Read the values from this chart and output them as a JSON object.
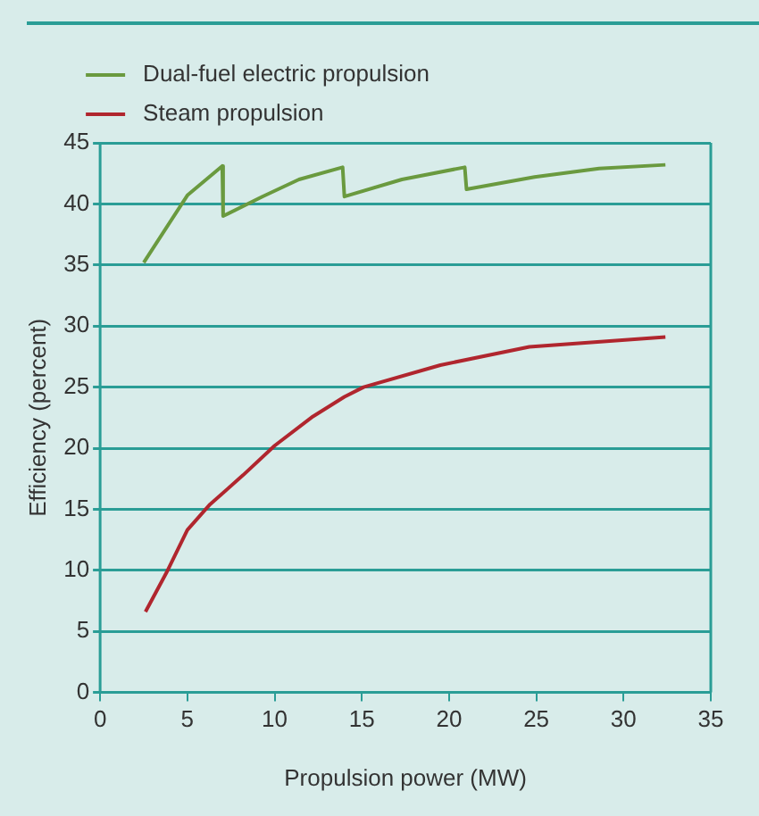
{
  "chart_data": {
    "type": "line",
    "xlabel": "Propulsion power (MW)",
    "ylabel": "Efficiency (percent)",
    "xlim": [
      0,
      35
    ],
    "xticks": [
      0,
      5,
      10,
      15,
      20,
      25,
      30,
      35
    ],
    "ylim": [
      0,
      45
    ],
    "yticks": [
      0,
      5,
      10,
      15,
      20,
      25,
      30,
      35,
      40,
      45
    ],
    "grid": "y",
    "legend": "top left",
    "marker": "none",
    "line_style": "solid",
    "series": [
      {
        "name": "Dual-fuel electric propulsion",
        "color": "#6a9a3f",
        "x": [
          2.5,
          5.0,
          7.0,
          7.05,
          9.3,
          11.4,
          13.9,
          14.0,
          17.3,
          20.9,
          21.0,
          24.9,
          28.6,
          32.4
        ],
        "values": [
          35.2,
          40.7,
          43.1,
          39.0,
          40.6,
          42.0,
          43.0,
          40.6,
          42.0,
          43.0,
          41.2,
          42.2,
          42.9,
          43.2
        ]
      },
      {
        "name": "Steam propulsion",
        "color": "#b0262e",
        "x": [
          2.6,
          3.8,
          5.0,
          6.3,
          8.2,
          10.0,
          12.2,
          14.0,
          15.1,
          19.5,
          24.6,
          32.4
        ],
        "values": [
          6.6,
          9.8,
          13.3,
          15.4,
          17.8,
          20.2,
          22.6,
          24.2,
          25.0,
          26.8,
          28.3,
          29.1
        ]
      }
    ]
  }
}
